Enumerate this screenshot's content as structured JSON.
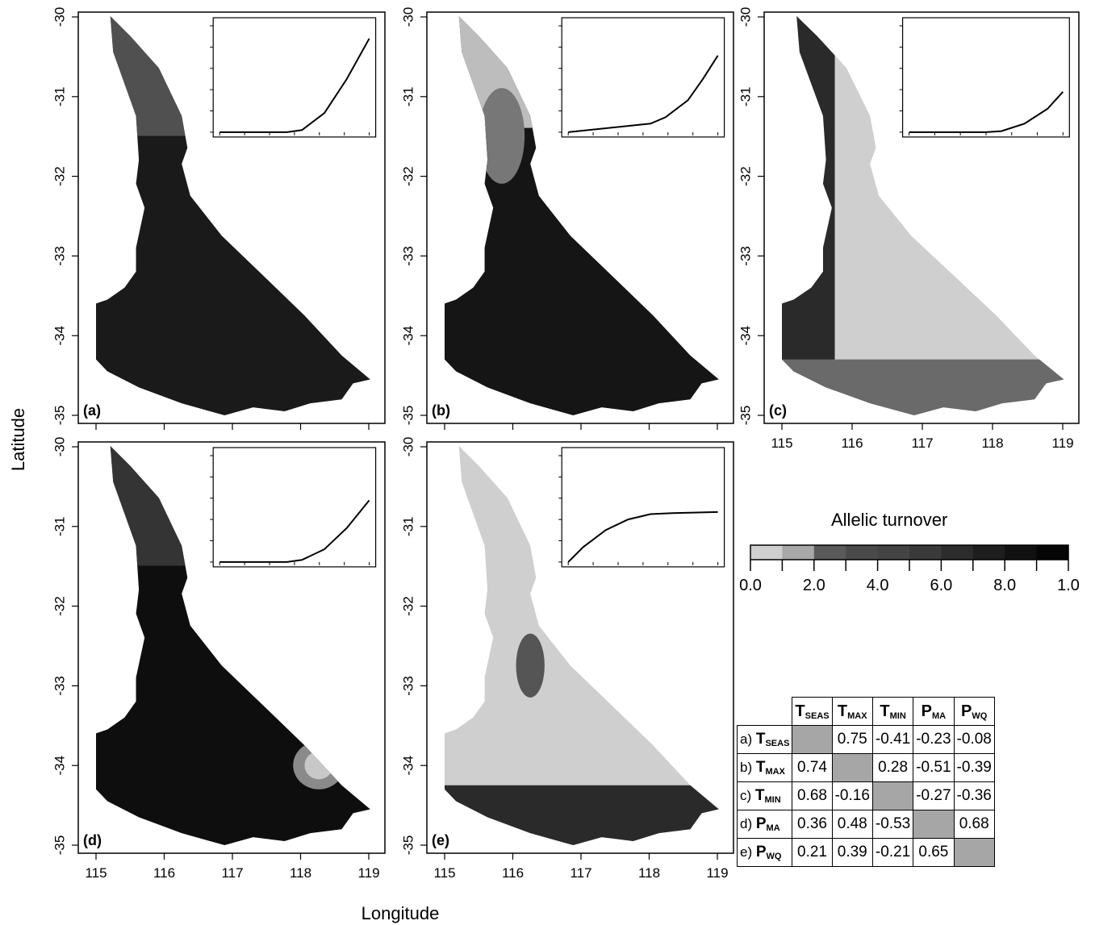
{
  "figure": {
    "x_axis_label": "Longitude",
    "y_axis_label": "Latitude",
    "x_ticks": [
      "115",
      "116",
      "117",
      "118",
      "119"
    ],
    "y_ticks": [
      "-30",
      "-31",
      "-32",
      "-33",
      "-34",
      "-35"
    ],
    "panels": [
      {
        "id": "a",
        "label": "(a)",
        "variable": "TSEAS",
        "inset_curve": [
          [
            0,
            0
          ],
          [
            0.45,
            0
          ],
          [
            0.55,
            0.02
          ],
          [
            0.7,
            0.18
          ],
          [
            0.85,
            0.5
          ],
          [
            1.0,
            0.88
          ]
        ]
      },
      {
        "id": "b",
        "label": "(b)",
        "variable": "TMAX",
        "inset_curve": [
          [
            0,
            0
          ],
          [
            0.55,
            0.08
          ],
          [
            0.65,
            0.14
          ],
          [
            0.8,
            0.3
          ],
          [
            0.9,
            0.5
          ],
          [
            1.0,
            0.72
          ]
        ]
      },
      {
        "id": "c",
        "label": "(c)",
        "variable": "TMIN",
        "inset_curve": [
          [
            0,
            0
          ],
          [
            0.5,
            0
          ],
          [
            0.6,
            0.01
          ],
          [
            0.75,
            0.08
          ],
          [
            0.9,
            0.22
          ],
          [
            1.0,
            0.38
          ]
        ]
      },
      {
        "id": "d",
        "label": "(d)",
        "variable": "PMA",
        "inset_curve": [
          [
            0,
            0
          ],
          [
            0.45,
            0
          ],
          [
            0.55,
            0.02
          ],
          [
            0.7,
            0.12
          ],
          [
            0.85,
            0.32
          ],
          [
            1.0,
            0.58
          ]
        ]
      },
      {
        "id": "e",
        "label": "(e)",
        "variable": "PWQ",
        "inset_curve": [
          [
            0,
            0
          ],
          [
            0.1,
            0.14
          ],
          [
            0.25,
            0.3
          ],
          [
            0.4,
            0.4
          ],
          [
            0.55,
            0.45
          ],
          [
            0.7,
            0.46
          ],
          [
            1.0,
            0.47
          ]
        ]
      }
    ]
  },
  "legend": {
    "title": "Allelic turnover",
    "tick_labels": [
      "0.0",
      "2.0",
      "4.0",
      "6.0",
      "8.0",
      "1.0"
    ],
    "scale_colors": [
      "#cfcfcf",
      "#a8a8a8",
      "#5a5a5a",
      "#4a4a4a",
      "#444444",
      "#3a3a3a",
      "#2c2c2c",
      "#1e1e1e",
      "#111111",
      "#050505"
    ]
  },
  "correlation_table": {
    "columns": [
      {
        "main": "T",
        "sub": "SEAS"
      },
      {
        "main": "T",
        "sub": "MAX"
      },
      {
        "main": "T",
        "sub": "MIN"
      },
      {
        "main": "P",
        "sub": "MA"
      },
      {
        "main": "P",
        "sub": "WQ"
      }
    ],
    "rows": [
      {
        "prefix": "a)",
        "main": "T",
        "sub": "SEAS",
        "values": [
          "",
          "0.75",
          "-0.41",
          "-0.23",
          "-0.08"
        ]
      },
      {
        "prefix": "b)",
        "main": "T",
        "sub": "MAX",
        "values": [
          "0.74",
          "",
          "0.28",
          "-0.51",
          "-0.39"
        ]
      },
      {
        "prefix": "c)",
        "main": "T",
        "sub": "MIN",
        "values": [
          "0.68",
          "-0.16",
          "",
          "-0.27",
          "-0.36"
        ]
      },
      {
        "prefix": "d)",
        "main": "P",
        "sub": "MA",
        "values": [
          "0.36",
          "0.48",
          "-0.53",
          "",
          "0.68"
        ]
      },
      {
        "prefix": "e)",
        "main": "P",
        "sub": "WQ",
        "values": [
          "0.21",
          "0.39",
          "-0.21",
          "0.65",
          ""
        ]
      }
    ]
  }
}
